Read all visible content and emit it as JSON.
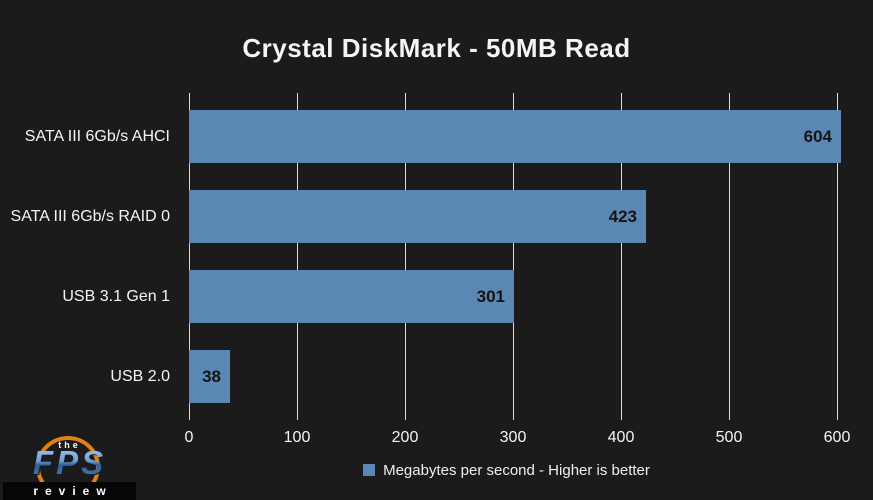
{
  "title": "Crystal DiskMark - 50MB Read",
  "chart_data": {
    "type": "bar",
    "orientation": "horizontal",
    "title": "Crystal DiskMark - 50MB Read",
    "categories": [
      "SATA III 6Gb/s AHCI",
      "SATA III 6Gb/s RAID 0",
      "USB 3.1 Gen 1",
      "USB 2.0"
    ],
    "values": [
      604,
      423,
      301,
      38
    ],
    "x_ticks": [
      0,
      100,
      200,
      300,
      400,
      500,
      600
    ],
    "xlim": [
      0,
      613
    ],
    "xlabel": "",
    "ylabel": "",
    "grid": "vertical gridlines on, behind bars",
    "legend_label": "Megabytes per second - Higher is better",
    "legend_position": "bottom-center",
    "bar_color": "#5b87b4",
    "value_label_color": "#141414",
    "background_color": "#1b1b1b",
    "gridline_color": "#d9d9d9",
    "text_color": "#f5f5f5"
  },
  "legend": {
    "label": "Megabytes per second - Higher is better"
  },
  "logo": {
    "line1": "the",
    "line2": "FPS",
    "line3": "review"
  }
}
